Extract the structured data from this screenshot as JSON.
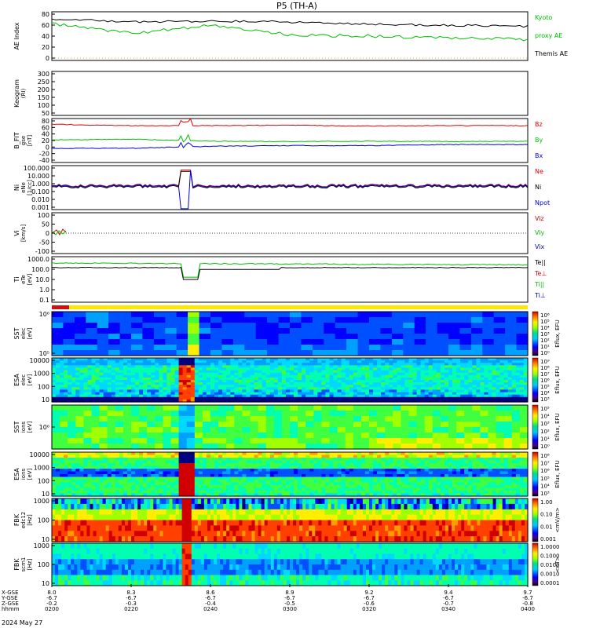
{
  "title": "P5 (TH-A)",
  "date_label": "2024 May 27",
  "colors": {
    "red": "#e00000",
    "green": "#00c000",
    "blue": "#0000e0",
    "black": "#000000",
    "yellow": "#ffe600",
    "status_red": "#d01010"
  },
  "x_axis": {
    "row_labels": [
      "X-GSE",
      "Y-GSE",
      "Z-GSE",
      "hhmm"
    ],
    "ticks": [
      {
        "values": [
          "8.0",
          "-6.7",
          "-0.2",
          "0200"
        ]
      },
      {
        "values": [
          "8.3",
          "-6.7",
          "-0.3",
          "0220"
        ]
      },
      {
        "values": [
          "8.6",
          "-6.7",
          "-0.4",
          "0240"
        ]
      },
      {
        "values": [
          "8.9",
          "-6.7",
          "-0.5",
          "0300"
        ]
      },
      {
        "values": [
          "9.2",
          "-6.7",
          "-0.6",
          "0320"
        ]
      },
      {
        "values": [
          "9.4",
          "-6.7",
          "-0.7",
          "0340"
        ]
      },
      {
        "values": [
          "9.7",
          "-6.7",
          "-0.8",
          "0400"
        ]
      }
    ]
  },
  "panels": [
    {
      "id": "ae",
      "ylabel": "AE Index",
      "ticks": [
        "80",
        "60",
        "40",
        "20",
        "0"
      ],
      "legend": [
        {
          "text": "Kyoto",
          "color": "#00c000"
        },
        {
          "text": "proxy AE",
          "color": "#00c000"
        },
        {
          "text": "Themis AE",
          "color": "#000000"
        }
      ]
    },
    {
      "id": "keogram",
      "ylabel": "Keogram",
      "unit": "(RI)",
      "ticks": [
        "300",
        "250",
        "200",
        "150",
        "100",
        "50"
      ]
    },
    {
      "id": "bfield",
      "ylabel": "B_FIT",
      "sub": "gse",
      "unit": "[nT]",
      "ticks": [
        "80",
        "60",
        "40",
        "20",
        "0",
        "-20",
        "-40"
      ],
      "legend": [
        {
          "text": "Bz",
          "color": "#e00000"
        },
        {
          "text": "By",
          "color": "#00c000"
        },
        {
          "text": "Bx",
          "color": "#0000e0"
        }
      ]
    },
    {
      "id": "density",
      "ylabel": "Ni",
      "sub": "eNe",
      "unit": "[1/cc]",
      "ticks": [
        "100.000",
        "10.000",
        "1.000",
        "0.100",
        "0.010",
        "0.001"
      ],
      "legend": [
        {
          "text": "Ne",
          "color": "#e00000"
        },
        {
          "text": "Ni",
          "color": "#000000"
        },
        {
          "text": "Npot",
          "color": "#0000e0"
        }
      ]
    },
    {
      "id": "velocity",
      "ylabel": "Vi",
      "unit": "[km/s]",
      "ticks": [
        "100",
        "50",
        "0",
        "-50",
        "-100"
      ],
      "legend": [
        {
          "text": "Viz",
          "color": "#e00000"
        },
        {
          "text": "Viy",
          "color": "#00c000"
        },
        {
          "text": "Vix",
          "color": "#0000e0"
        }
      ]
    },
    {
      "id": "temp",
      "ylabel": "Ti",
      "sub": "eTe",
      "unit": "[eV]",
      "ticks": [
        "1000.0",
        "100.0",
        "10.0",
        "1.0",
        "0.1"
      ],
      "legend": [
        {
          "text": "Te||",
          "color": "#000000"
        },
        {
          "text": "Te⊥",
          "color": "#e00000"
        },
        {
          "text": "Ti||",
          "color": "#00c000"
        },
        {
          "text": "Ti⊥",
          "color": "#0000e0"
        }
      ]
    },
    {
      "id": "sst_e",
      "ylabel": "SST",
      "sub": "elec",
      "unit": "[eV]",
      "ticks": [
        "10⁶",
        "10⁵"
      ],
      "cbar": {
        "label": "Eflux, EFU",
        "ticks": [
          "10⁶",
          "10⁵",
          "10⁴",
          "10³",
          "10²",
          "10¹",
          "10⁰"
        ]
      }
    },
    {
      "id": "esa_e",
      "ylabel": "ESA",
      "sub": "elec",
      "unit": "[eV]",
      "ticks": [
        "10000",
        "1000",
        "100",
        "10"
      ],
      "cbar": {
        "label": "Eflux, EFU",
        "ticks": [
          "10⁹",
          "10⁸",
          "10⁷",
          "10⁶",
          "10⁵",
          "10⁴",
          "10³"
        ]
      }
    },
    {
      "id": "sst_i",
      "ylabel": "SST",
      "sub": "ions",
      "unit": "[eV]",
      "ticks": [
        "10⁶"
      ],
      "cbar": {
        "label": "Eflux, EFU",
        "ticks": [
          "10⁵",
          "10⁴",
          "10³",
          "10²",
          "10¹",
          "10⁰"
        ]
      }
    },
    {
      "id": "esa_i",
      "ylabel": "ESA",
      "sub": "ions",
      "unit": "[eV]",
      "ticks": [
        "10000",
        "1000",
        "100",
        "10"
      ],
      "cbar": {
        "label": "Eflux, EFU",
        "ticks": [
          "10⁸",
          "10⁷",
          "10⁶",
          "10⁵",
          "10⁴",
          "10³"
        ]
      }
    },
    {
      "id": "fbk_e",
      "ylabel": "FBK",
      "sub": "edc12",
      "unit": "[Hz]",
      "ticks": [
        "1000",
        "100",
        "10"
      ],
      "cbar": {
        "label": "<mV/m>",
        "ticks": [
          "1.00",
          "0.10",
          "0.01",
          "0.001"
        ]
      }
    },
    {
      "id": "fbk_b",
      "ylabel": "FBK",
      "sub": "scm1",
      "unit": "[Hz]",
      "ticks": [
        "1000",
        "100",
        "10"
      ],
      "cbar": {
        "label": "<nT>",
        "ticks": [
          "1.0000",
          "0.1000",
          "0.0100",
          "0.0010",
          "0.0001"
        ]
      }
    }
  ],
  "chart_data": {
    "type": "line",
    "title": "P5 (TH-A)",
    "x": [
      "0200",
      "0220",
      "0240",
      "0300",
      "0320",
      "0340",
      "0400"
    ],
    "series": [
      {
        "name": "Themis AE",
        "values": [
          72,
          66,
          68,
          66,
          62,
          60,
          58
        ]
      },
      {
        "name": "Kyoto",
        "values": [
          63,
          45,
          60,
          42,
          40,
          36,
          34
        ]
      },
      {
        "name": "Bz",
        "values": [
          68,
          64,
          64,
          65,
          63,
          64,
          64
        ]
      },
      {
        "name": "By",
        "values": [
          22,
          24,
          18,
          17,
          18,
          17,
          18
        ]
      },
      {
        "name": "Bx",
        "values": [
          -3,
          -3,
          3,
          5,
          5,
          8,
          8
        ]
      }
    ],
    "ylim": [
      0,
      80
    ]
  }
}
